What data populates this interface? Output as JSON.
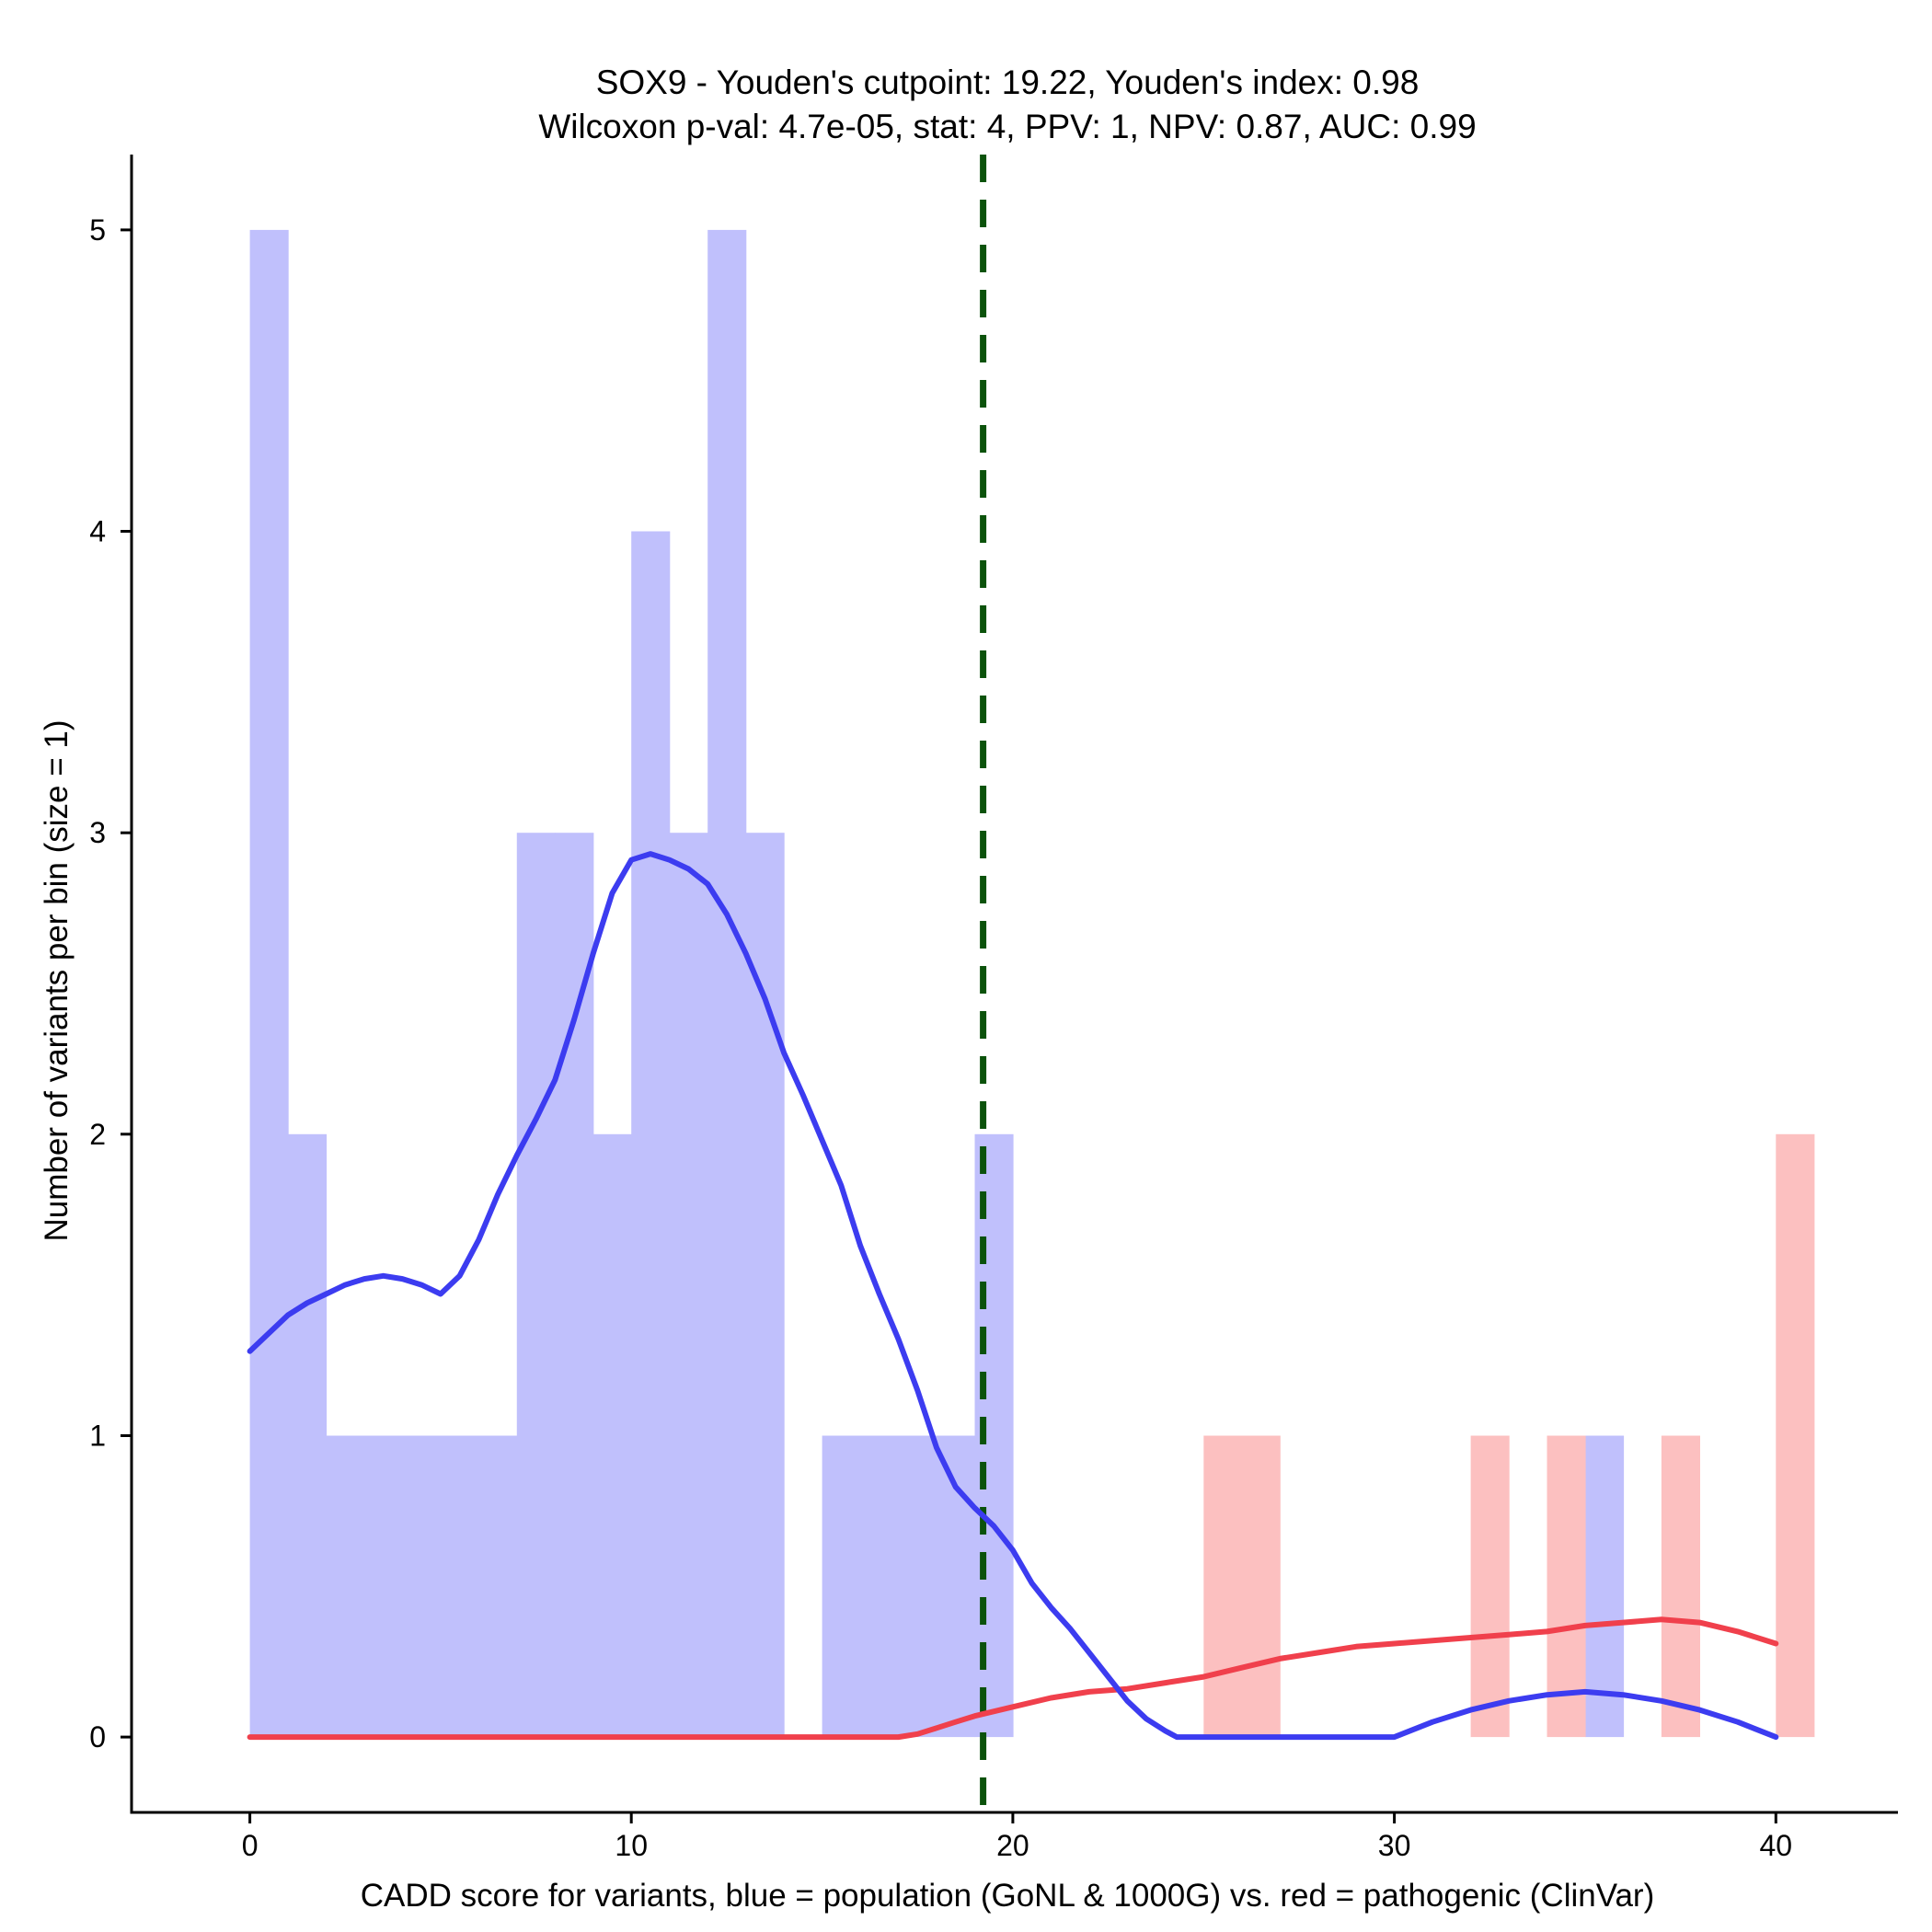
{
  "chart_data": {
    "type": "histogram",
    "title_line1": "SOX9 - Youden's cutpoint: 19.22, Youden's index: 0.98",
    "title_line2": "Wilcoxon p-val: 4.7e-05, stat: 4, PPV: 1, NPV: 0.87, AUC: 0.99",
    "xlabel": "CADD score for variants, blue = population (GoNL & 1000G) vs. red = pathogenic (ClinVar)",
    "ylabel": "Number of variants per bin (size = 1)",
    "xlim": [
      -3.1,
      43.2
    ],
    "ylim": [
      -0.25,
      5.25
    ],
    "xticks": [
      0,
      10,
      20,
      30,
      40
    ],
    "yticks": [
      0,
      1,
      2,
      3,
      4,
      5
    ],
    "bin_width": 1,
    "cutpoint": 19.22,
    "colors": {
      "population_bar": "#c0c0fc",
      "pathogenic_bar": "#fcc0c0",
      "population_line": "#3c3cf0",
      "pathogenic_line": "#f0404c",
      "cutpoint_line": "#0b520b"
    },
    "series": [
      {
        "name": "population",
        "bins": [
          [
            0,
            5
          ],
          [
            1,
            2
          ],
          [
            2,
            1
          ],
          [
            3,
            1
          ],
          [
            4,
            1
          ],
          [
            5,
            1
          ],
          [
            6,
            1
          ],
          [
            7,
            3
          ],
          [
            8,
            3
          ],
          [
            9,
            2
          ],
          [
            10,
            4
          ],
          [
            11,
            3
          ],
          [
            12,
            5
          ],
          [
            13,
            3
          ],
          [
            15,
            1
          ],
          [
            16,
            1
          ],
          [
            17,
            1
          ],
          [
            18,
            1
          ],
          [
            19,
            2
          ],
          [
            35,
            1
          ]
        ],
        "density_curve": [
          [
            0,
            1.28
          ],
          [
            0.5,
            1.34
          ],
          [
            1,
            1.4
          ],
          [
            1.5,
            1.44
          ],
          [
            2,
            1.47
          ],
          [
            2.5,
            1.5
          ],
          [
            3,
            1.52
          ],
          [
            3.5,
            1.53
          ],
          [
            4,
            1.52
          ],
          [
            4.5,
            1.5
          ],
          [
            5,
            1.47
          ],
          [
            5.5,
            1.53
          ],
          [
            6,
            1.65
          ],
          [
            6.5,
            1.8
          ],
          [
            7,
            1.93
          ],
          [
            7.5,
            2.05
          ],
          [
            8,
            2.18
          ],
          [
            8.5,
            2.38
          ],
          [
            9,
            2.6
          ],
          [
            9.5,
            2.8
          ],
          [
            10,
            2.91
          ],
          [
            10.5,
            2.93
          ],
          [
            11,
            2.91
          ],
          [
            11.5,
            2.88
          ],
          [
            12,
            2.83
          ],
          [
            12.5,
            2.73
          ],
          [
            13,
            2.6
          ],
          [
            13.5,
            2.45
          ],
          [
            14,
            2.27
          ],
          [
            14.5,
            2.13
          ],
          [
            15,
            1.98
          ],
          [
            15.5,
            1.83
          ],
          [
            16,
            1.63
          ],
          [
            16.5,
            1.47
          ],
          [
            17,
            1.32
          ],
          [
            17.5,
            1.15
          ],
          [
            18,
            0.96
          ],
          [
            18.5,
            0.83
          ],
          [
            19,
            0.76
          ],
          [
            19.5,
            0.7
          ],
          [
            20,
            0.62
          ],
          [
            20.5,
            0.51
          ],
          [
            21,
            0.43
          ],
          [
            21.5,
            0.36
          ],
          [
            22,
            0.28
          ],
          [
            22.5,
            0.2
          ],
          [
            23,
            0.12
          ],
          [
            23.5,
            0.06
          ],
          [
            24,
            0.02
          ],
          [
            24.3,
            0.0
          ],
          [
            25,
            0.0
          ],
          [
            26,
            0.0
          ],
          [
            27,
            0.0
          ],
          [
            28,
            0.0
          ],
          [
            29,
            0.0
          ],
          [
            30,
            0.0
          ],
          [
            31,
            0.05
          ],
          [
            32,
            0.09
          ],
          [
            33,
            0.12
          ],
          [
            34,
            0.14
          ],
          [
            35,
            0.15
          ],
          [
            36,
            0.14
          ],
          [
            37,
            0.12
          ],
          [
            38,
            0.09
          ],
          [
            39,
            0.05
          ],
          [
            40,
            0.0
          ]
        ]
      },
      {
        "name": "pathogenic",
        "bins": [
          [
            25,
            1
          ],
          [
            26,
            1
          ],
          [
            32,
            1
          ],
          [
            34,
            1
          ],
          [
            37,
            1
          ],
          [
            40,
            2
          ]
        ],
        "density_curve": [
          [
            0,
            0.0
          ],
          [
            5,
            0.0
          ],
          [
            10,
            0.0
          ],
          [
            15,
            0.0
          ],
          [
            17,
            0.0
          ],
          [
            17.5,
            0.01
          ],
          [
            18,
            0.03
          ],
          [
            18.5,
            0.05
          ],
          [
            19,
            0.07
          ],
          [
            20,
            0.1
          ],
          [
            21,
            0.13
          ],
          [
            22,
            0.15
          ],
          [
            23,
            0.16
          ],
          [
            24,
            0.18
          ],
          [
            25,
            0.2
          ],
          [
            26,
            0.23
          ],
          [
            27,
            0.26
          ],
          [
            28,
            0.28
          ],
          [
            29,
            0.3
          ],
          [
            30,
            0.31
          ],
          [
            31,
            0.32
          ],
          [
            32,
            0.33
          ],
          [
            33,
            0.34
          ],
          [
            34,
            0.35
          ],
          [
            35,
            0.37
          ],
          [
            36,
            0.38
          ],
          [
            37,
            0.39
          ],
          [
            38,
            0.38
          ],
          [
            39,
            0.35
          ],
          [
            40,
            0.31
          ]
        ]
      }
    ]
  }
}
